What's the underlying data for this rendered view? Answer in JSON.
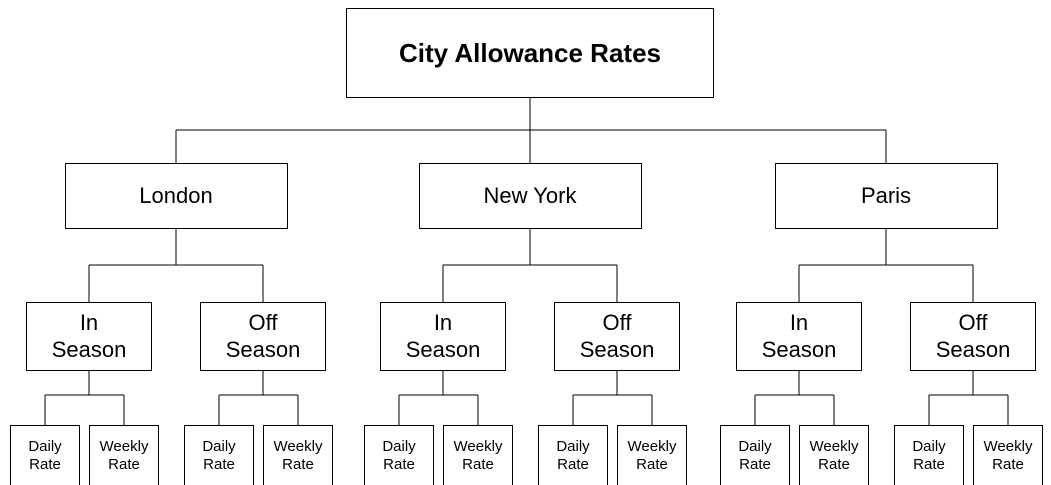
{
  "title": "City Allowance Rates",
  "cities": [
    {
      "name": "London",
      "seasons": [
        {
          "name": "In Season",
          "rates": [
            "Daily Rate",
            "Weekly Rate"
          ]
        },
        {
          "name": "Off Season",
          "rates": [
            "Daily Rate",
            "Weekly Rate"
          ]
        }
      ]
    },
    {
      "name": "New York",
      "seasons": [
        {
          "name": "In Season",
          "rates": [
            "Daily Rate",
            "Weekly Rate"
          ]
        },
        {
          "name": "Off Season",
          "rates": [
            "Daily Rate",
            "Weekly Rate"
          ]
        }
      ]
    },
    {
      "name": "Paris",
      "seasons": [
        {
          "name": "In Season",
          "rates": [
            "Daily Rate",
            "Weekly Rate"
          ]
        },
        {
          "name": "Off Season",
          "rates": [
            "Daily Rate",
            "Weekly Rate"
          ]
        }
      ]
    }
  ]
}
